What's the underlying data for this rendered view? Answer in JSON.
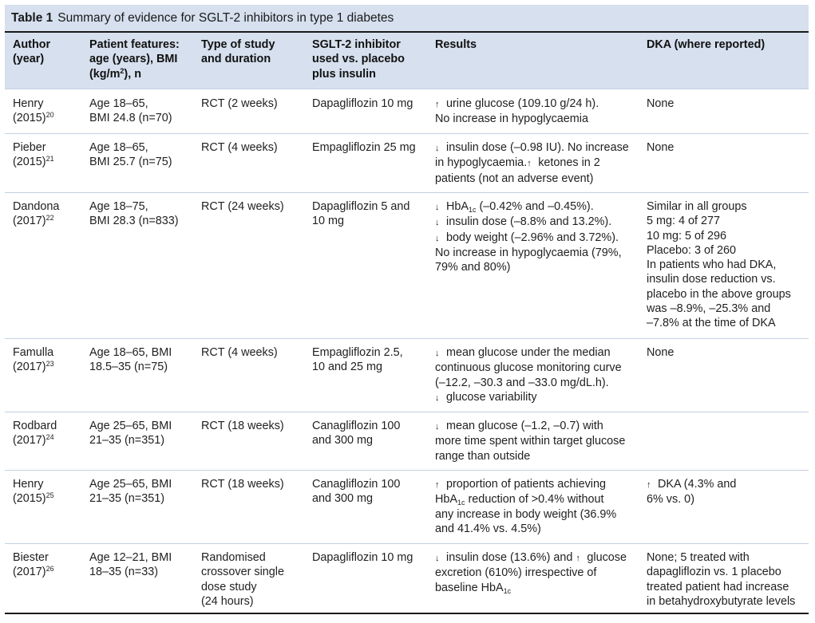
{
  "title": {
    "label": "Table 1",
    "text": "Summary of evidence for SGLT-2 inhibitors in type 1 diabetes"
  },
  "headers": {
    "author": [
      "Author",
      "(year)"
    ],
    "features": [
      "Patient features:",
      "age (years), BMI",
      "(kg/m²), n"
    ],
    "study": [
      "Type of study",
      "and duration"
    ],
    "drug": [
      "SGLT-2 inhibitor",
      "used vs. placebo",
      "plus insulin"
    ],
    "results": [
      "Results"
    ],
    "dka": [
      "DKA (where reported)"
    ]
  },
  "rows": [
    {
      "author": [
        "Henry"
      ],
      "year": "(2015)",
      "ref": "20",
      "features": [
        "Age 18–65,",
        "BMI 24.8 (n=70)"
      ],
      "study": [
        "RCT (2 weeks)"
      ],
      "drug": [
        "Dapagliflozin 10 mg"
      ],
      "results": [
        "↑ urine glucose (109.10 g/24 h).",
        "No increase in hypoglycaemia"
      ],
      "dka": [
        "None"
      ]
    },
    {
      "author": [
        "Pieber"
      ],
      "year": "(2015)",
      "ref": "21",
      "features": [
        "Age 18–65,",
        "BMI 25.7 (n=75)"
      ],
      "study": [
        "RCT (4 weeks)"
      ],
      "drug": [
        "Empagliflozin 25 mg"
      ],
      "results": [
        "↓ insulin dose (–0.98 IU). No increase",
        "in hypoglycaemia.↑ ketones in 2",
        "patients (not an adverse event)"
      ],
      "dka": [
        "None"
      ]
    },
    {
      "author": [
        "Dandona"
      ],
      "year": "(2017)",
      "ref": "22",
      "features": [
        "Age 18–75,",
        "BMI 28.3 (n=833)"
      ],
      "study": [
        "RCT (24 weeks)"
      ],
      "drug": [
        "Dapagliflozin 5 and",
        "10 mg"
      ],
      "results": [
        "↓ HbA1c (–0.42% and –0.45%).",
        "↓ insulin dose (–8.8% and 13.2%).",
        "↓ body weight (–2.96% and 3.72%).",
        "No increase in hypoglycaemia (79%,",
        "79% and 80%)"
      ],
      "dka": [
        "Similar in all groups",
        "5 mg: 4 of 277",
        "10 mg: 5 of 296",
        "Placebo: 3 of 260",
        "In patients who had DKA,",
        "insulin dose reduction vs.",
        "placebo in the above groups",
        "was –8.9%, –25.3% and",
        "–7.8% at the time of DKA"
      ]
    },
    {
      "author": [
        "Famulla"
      ],
      "year": "(2017)",
      "ref": "23",
      "features": [
        "Age 18–65, BMI",
        "18.5–35 (n=75)"
      ],
      "study": [
        "RCT (4 weeks)"
      ],
      "drug": [
        "Empagliflozin 2.5,",
        "10 and 25 mg"
      ],
      "results": [
        "↓ mean glucose under the median",
        "continuous glucose monitoring curve",
        "(–12.2, –30.3 and –33.0 mg/dL.h).",
        "↓ glucose variability"
      ],
      "dka": [
        "None"
      ]
    },
    {
      "author": [
        "Rodbard"
      ],
      "year": "(2017)",
      "ref": "24",
      "features": [
        "Age 25–65, BMI",
        "21–35 (n=351)"
      ],
      "study": [
        "RCT (18 weeks)"
      ],
      "drug": [
        "Canagliflozin 100",
        "and 300 mg"
      ],
      "results": [
        "↓ mean glucose (–1.2, –0.7) with",
        "more time spent within target glucose",
        "range than outside"
      ],
      "dka": []
    },
    {
      "author": [
        "Henry"
      ],
      "year": "(2015)",
      "ref": "25",
      "features": [
        "Age 25–65, BMI",
        "21–35 (n=351)"
      ],
      "study": [
        "RCT (18 weeks)"
      ],
      "drug": [
        "Canagliflozin 100",
        "and 300 mg"
      ],
      "results": [
        "↑ proportion of patients achieving",
        "HbA1c reduction of >0.4% without",
        "any increase in body weight (36.9%",
        "and 41.4% vs. 4.5%)"
      ],
      "dka": [
        "↑ DKA (4.3% and",
        "6% vs. 0)"
      ]
    },
    {
      "author": [
        "Biester"
      ],
      "year": "(2017)",
      "ref": "26",
      "features": [
        "Age 12–21, BMI",
        "18–35 (n=33)"
      ],
      "study": [
        "Randomised",
        "crossover single",
        "dose study",
        "(24 hours)"
      ],
      "drug": [
        "Dapagliflozin 10 mg"
      ],
      "results": [
        "↓ insulin dose (13.6%) and ↑ glucose",
        "excretion (610%) irrespective of",
        "baseline HbA1c"
      ],
      "dka": [
        "None; 5 treated with",
        "dapagliflozin vs. 1 placebo",
        "treated patient had increase",
        "in betahydroxybutyrate levels"
      ]
    }
  ]
}
